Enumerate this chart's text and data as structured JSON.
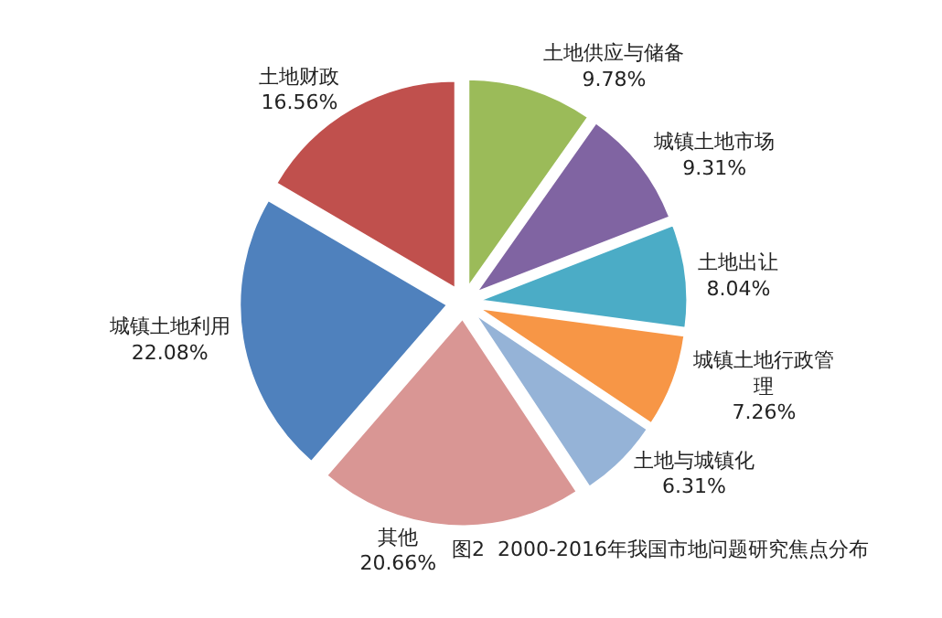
{
  "chart_data": {
    "type": "pie",
    "categories": [
      "土地供应与储备",
      "城镇土地市场",
      "土地出让",
      "城镇土地行政管理",
      "土地与城镇化",
      "其他",
      "城镇土地利用",
      "土地财政"
    ],
    "values": [
      9.78,
      9.31,
      8.04,
      7.26,
      6.31,
      20.66,
      22.08,
      16.56
    ],
    "value_labels": [
      "9.78%",
      "9.31%",
      "8.04%",
      "7.26%",
      "6.31%",
      "20.66%",
      "22.08%",
      "16.56%"
    ],
    "colors": [
      "#9bbb59",
      "#8064a2",
      "#4bacc6",
      "#f79646",
      "#95b3d7",
      "#d99694",
      "#4f81bd",
      "#c0504d"
    ],
    "annotations": [
      "图2  2000-2016年我国市地问题研究焦点分布"
    ],
    "legend": false
  }
}
